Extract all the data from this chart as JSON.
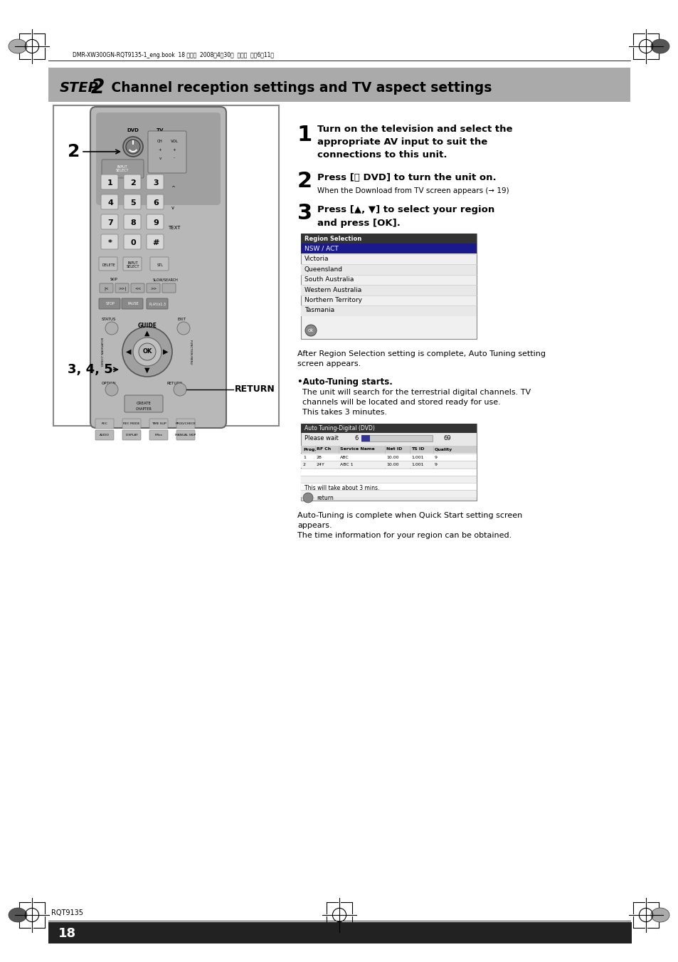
{
  "page_bg": "#ffffff",
  "title_bar_color": "#aaaaaa",
  "step1_num": "1",
  "step1_line1": "Turn on the television and select the",
  "step1_line2": "appropriate AV input to suit the",
  "step1_line3": "connections to this unit.",
  "step2_num": "2",
  "step2_bold": "Press [⏻ DVD] to turn the unit on.",
  "step2_small": "When the Download from TV screen appears (➞ 19)",
  "step3_num": "3",
  "step3_line1": "Press [▲, ▼] to select your region",
  "step3_line2": "and press [OK].",
  "region_title": "Region Selection",
  "regions": [
    "NSW / ACT",
    "Victoria",
    "Queensland",
    "South Australia",
    "Western Australia",
    "Northern Territory",
    "Tasmania"
  ],
  "after_region_line1": "After Region Selection setting is complete, Auto Tuning setting",
  "after_region_line2": "screen appears.",
  "bullet_auto": "•Auto-Tuning starts.",
  "auto_line1": "  The unit will search for the terrestrial digital channels. TV",
  "auto_line2": "  channels will be located and stored ready for use.",
  "auto_line3": "  This takes 3 minutes.",
  "atd_title": "Auto Tuning-Digital (DVD)",
  "atd_pleasewait": "Please wait",
  "atd_progress_num": "6",
  "atd_progress_total": "69",
  "atd_headers": [
    "Prog.",
    "RF Ch",
    "Service Name",
    "Net ID",
    "TS ID",
    "Quality"
  ],
  "atd_row1": [
    "1",
    "28",
    "ABC",
    "10.00",
    "1.001",
    "9"
  ],
  "atd_row2": [
    "2",
    "24Y",
    "ABC 1",
    "10.00",
    "1.001",
    "9"
  ],
  "atd_footer": "This will take about 3 mins.",
  "atd_return": "return",
  "complete_line1": "Auto-Tuning is complete when Quick Start setting screen",
  "complete_line2": "appears.",
  "complete_line3": "The time information for your region can be obtained.",
  "label_2": "2",
  "label_345": "3, 4, 5",
  "label_return": "RETURN",
  "footer_page": "18",
  "footer_code": "RQT9135",
  "top_banner": "DMR-XW300GN-RQT9135-1_eng.book  18 ページ  2008年4月30日  水曜日  午後6時11分",
  "remote_body_color": "#b8b8b8",
  "remote_dark": "#888888",
  "remote_darker": "#666666",
  "remote_light": "#d8d8d8",
  "remote_btn_light": "#cccccc",
  "remote_btn_dark": "#999999"
}
